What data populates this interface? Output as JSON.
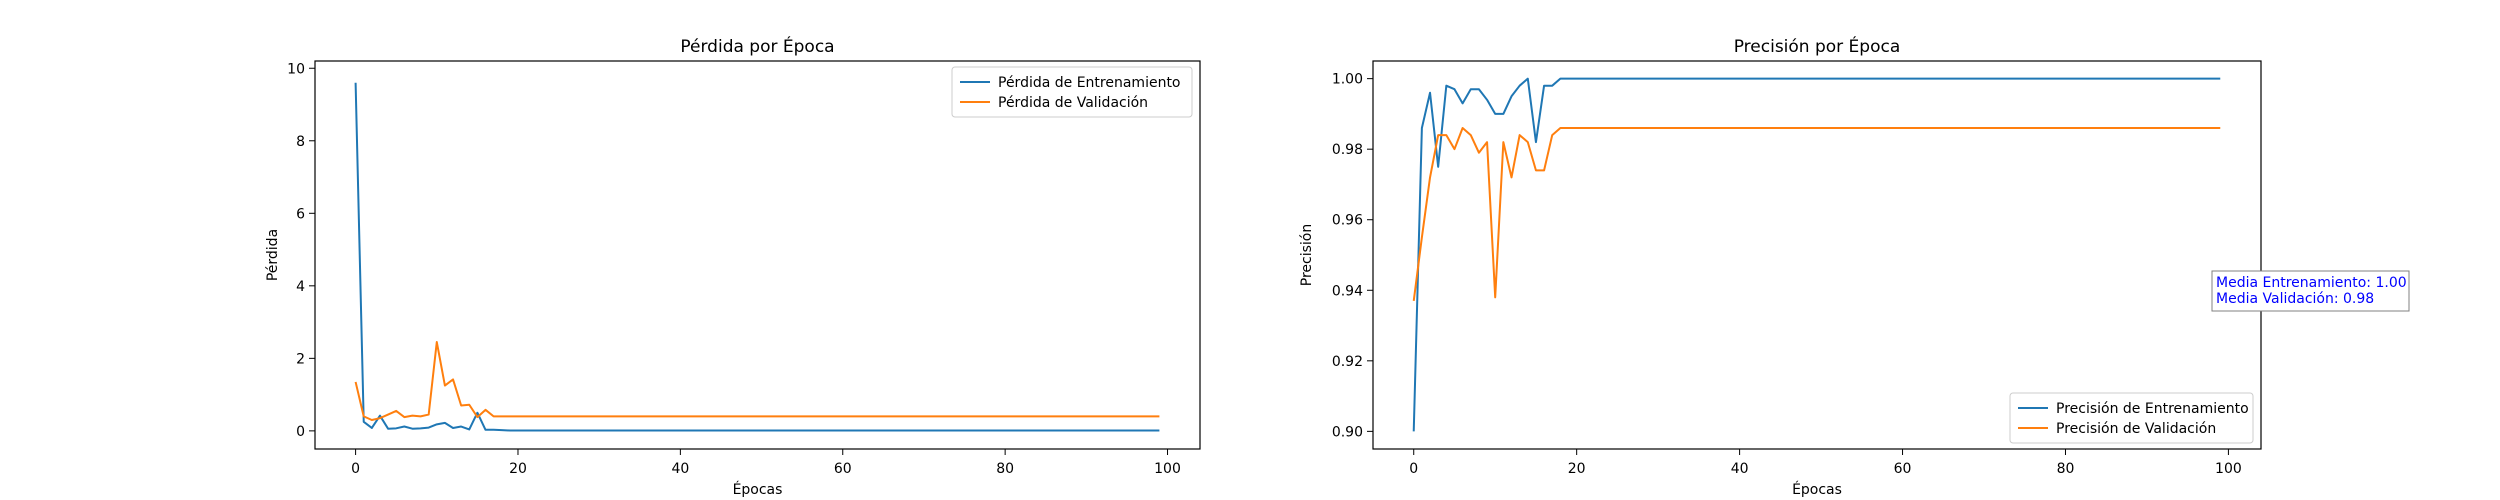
{
  "colors": {
    "train": "#1f77b4",
    "val": "#ff7f0e",
    "annotation": "#0000ff",
    "frame": "#000000"
  },
  "chart_data": [
    {
      "type": "line",
      "title": "Pérdida por Época",
      "xlabel": "Épocas",
      "ylabel": "Pérdida",
      "xlim": [
        -5,
        104
      ],
      "ylim": [
        -0.5,
        10.2
      ],
      "xticks": [
        0,
        20,
        40,
        60,
        80,
        100
      ],
      "yticks": [
        0,
        2,
        4,
        6,
        8,
        10
      ],
      "ytick_labels": [
        "0",
        "2",
        "4",
        "6",
        "8",
        "10"
      ],
      "grid": false,
      "legend_position": "top-right",
      "x": [
        0,
        1,
        2,
        3,
        4,
        5,
        6,
        7,
        8,
        9,
        10,
        11,
        12,
        13,
        14,
        15,
        16,
        17,
        18,
        19,
        20,
        21,
        22,
        23,
        24,
        25,
        26,
        27,
        28,
        29,
        30,
        31,
        32,
        33,
        34,
        35,
        36,
        37,
        38,
        39,
        40,
        41,
        42,
        43,
        44,
        45,
        46,
        47,
        48,
        49,
        50,
        51,
        52,
        53,
        54,
        55,
        56,
        57,
        58,
        59,
        60,
        61,
        62,
        63,
        64,
        65,
        66,
        67,
        68,
        69,
        70,
        71,
        72,
        73,
        74,
        75,
        76,
        77,
        78,
        79,
        80,
        81,
        82,
        83,
        84,
        85,
        86,
        87,
        88,
        89,
        90,
        91,
        92,
        93,
        94,
        95,
        96,
        97,
        98,
        99
      ],
      "series": [
        {
          "name": "Pérdida de Entrenamiento",
          "color": "#1f77b4",
          "values": [
            9.6,
            0.25,
            0.08,
            0.42,
            0.06,
            0.07,
            0.12,
            0.06,
            0.07,
            0.09,
            0.18,
            0.22,
            0.08,
            0.12,
            0.04,
            0.5,
            0.03,
            0.03,
            0.02,
            0.01,
            0.01,
            0.01,
            0.01,
            0.01,
            0.01,
            0.01,
            0.01,
            0.01,
            0.01,
            0.01,
            0.01,
            0.01,
            0.01,
            0.01,
            0.01,
            0.01,
            0.01,
            0.01,
            0.01,
            0.01,
            0.01,
            0.01,
            0.01,
            0.01,
            0.01,
            0.01,
            0.01,
            0.01,
            0.01,
            0.01,
            0.01,
            0.01,
            0.01,
            0.01,
            0.01,
            0.01,
            0.01,
            0.01,
            0.01,
            0.01,
            0.01,
            0.01,
            0.01,
            0.01,
            0.01,
            0.01,
            0.01,
            0.01,
            0.01,
            0.01,
            0.01,
            0.01,
            0.01,
            0.01,
            0.01,
            0.01,
            0.01,
            0.01,
            0.01,
            0.01,
            0.01,
            0.01,
            0.01,
            0.01,
            0.01,
            0.01,
            0.01,
            0.01,
            0.01,
            0.01,
            0.01,
            0.01,
            0.01,
            0.01,
            0.01,
            0.01,
            0.01,
            0.01,
            0.01,
            0.01
          ]
        },
        {
          "name": "Pérdida de Validación",
          "color": "#ff7f0e",
          "values": [
            1.35,
            0.4,
            0.3,
            0.35,
            0.45,
            0.55,
            0.38,
            0.42,
            0.4,
            0.45,
            2.45,
            1.25,
            1.42,
            0.7,
            0.72,
            0.38,
            0.58,
            0.4,
            0.4,
            0.4,
            0.4,
            0.4,
            0.4,
            0.4,
            0.4,
            0.4,
            0.4,
            0.4,
            0.4,
            0.4,
            0.4,
            0.4,
            0.4,
            0.4,
            0.4,
            0.4,
            0.4,
            0.4,
            0.4,
            0.4,
            0.4,
            0.4,
            0.4,
            0.4,
            0.4,
            0.4,
            0.4,
            0.4,
            0.4,
            0.4,
            0.4,
            0.4,
            0.4,
            0.4,
            0.4,
            0.4,
            0.4,
            0.4,
            0.4,
            0.4,
            0.4,
            0.4,
            0.4,
            0.4,
            0.4,
            0.4,
            0.4,
            0.4,
            0.4,
            0.4,
            0.4,
            0.4,
            0.4,
            0.4,
            0.4,
            0.4,
            0.4,
            0.4,
            0.4,
            0.4,
            0.4,
            0.4,
            0.4,
            0.4,
            0.4,
            0.4,
            0.4,
            0.4,
            0.4,
            0.4,
            0.4,
            0.4,
            0.4,
            0.4,
            0.4,
            0.4,
            0.4,
            0.4,
            0.4,
            0.4
          ]
        }
      ]
    },
    {
      "type": "line",
      "title": "Precisión por Época",
      "xlabel": "Épocas",
      "ylabel": "Precisión",
      "xlim": [
        -5,
        104
      ],
      "ylim": [
        0.895,
        1.005
      ],
      "xticks": [
        0,
        20,
        40,
        60,
        80,
        100
      ],
      "yticks": [
        0.9,
        0.92,
        0.94,
        0.96,
        0.98,
        1.0
      ],
      "ytick_labels": [
        "0.90",
        "0.92",
        "0.94",
        "0.96",
        "0.98",
        "1.00"
      ],
      "grid": false,
      "legend_position": "bottom-right",
      "x": [
        0,
        1,
        2,
        3,
        4,
        5,
        6,
        7,
        8,
        9,
        10,
        11,
        12,
        13,
        14,
        15,
        16,
        17,
        18,
        19,
        20,
        21,
        22,
        23,
        24,
        25,
        26,
        27,
        28,
        29,
        30,
        31,
        32,
        33,
        34,
        35,
        36,
        37,
        38,
        39,
        40,
        41,
        42,
        43,
        44,
        45,
        46,
        47,
        48,
        49,
        50,
        51,
        52,
        53,
        54,
        55,
        56,
        57,
        58,
        59,
        60,
        61,
        62,
        63,
        64,
        65,
        66,
        67,
        68,
        69,
        70,
        71,
        72,
        73,
        74,
        75,
        76,
        77,
        78,
        79,
        80,
        81,
        82,
        83,
        84,
        85,
        86,
        87,
        88,
        89,
        90,
        91,
        92,
        93,
        94,
        95,
        96,
        97,
        98,
        99
      ],
      "series": [
        {
          "name": "Precisión de Entrenamiento",
          "color": "#1f77b4",
          "values": [
            0.9,
            0.986,
            0.996,
            0.975,
            0.998,
            0.997,
            0.993,
            0.997,
            0.997,
            0.994,
            0.99,
            0.99,
            0.995,
            0.998,
            1.0,
            0.982,
            0.998,
            0.998,
            1.0,
            1.0,
            1.0,
            1.0,
            1.0,
            1.0,
            1.0,
            1.0,
            1.0,
            1.0,
            1.0,
            1.0,
            1.0,
            1.0,
            1.0,
            1.0,
            1.0,
            1.0,
            1.0,
            1.0,
            1.0,
            1.0,
            1.0,
            1.0,
            1.0,
            1.0,
            1.0,
            1.0,
            1.0,
            1.0,
            1.0,
            1.0,
            1.0,
            1.0,
            1.0,
            1.0,
            1.0,
            1.0,
            1.0,
            1.0,
            1.0,
            1.0,
            1.0,
            1.0,
            1.0,
            1.0,
            1.0,
            1.0,
            1.0,
            1.0,
            1.0,
            1.0,
            1.0,
            1.0,
            1.0,
            1.0,
            1.0,
            1.0,
            1.0,
            1.0,
            1.0,
            1.0,
            1.0,
            1.0,
            1.0,
            1.0,
            1.0,
            1.0,
            1.0,
            1.0,
            1.0,
            1.0,
            1.0,
            1.0,
            1.0,
            1.0,
            1.0,
            1.0,
            1.0,
            1.0,
            1.0,
            1.0
          ]
        },
        {
          "name": "Precisión de Validación",
          "color": "#ff7f0e",
          "values": [
            0.937,
            0.955,
            0.972,
            0.984,
            0.984,
            0.98,
            0.986,
            0.984,
            0.979,
            0.982,
            0.938,
            0.982,
            0.972,
            0.984,
            0.982,
            0.974,
            0.974,
            0.984,
            0.986,
            0.986,
            0.986,
            0.986,
            0.986,
            0.986,
            0.986,
            0.986,
            0.986,
            0.986,
            0.986,
            0.986,
            0.986,
            0.986,
            0.986,
            0.986,
            0.986,
            0.986,
            0.986,
            0.986,
            0.986,
            0.986,
            0.986,
            0.986,
            0.986,
            0.986,
            0.986,
            0.986,
            0.986,
            0.986,
            0.986,
            0.986,
            0.986,
            0.986,
            0.986,
            0.986,
            0.986,
            0.986,
            0.986,
            0.986,
            0.986,
            0.986,
            0.986,
            0.986,
            0.986,
            0.986,
            0.986,
            0.986,
            0.986,
            0.986,
            0.986,
            0.986,
            0.986,
            0.986,
            0.986,
            0.986,
            0.986,
            0.986,
            0.986,
            0.986,
            0.986,
            0.986,
            0.986,
            0.986,
            0.986,
            0.986,
            0.986,
            0.986,
            0.986,
            0.986,
            0.986,
            0.986,
            0.986,
            0.986,
            0.986,
            0.986,
            0.986,
            0.986,
            0.986,
            0.986,
            0.986,
            0.986
          ]
        }
      ],
      "annotations": [
        "Media Entrenamiento: 1.00",
        "Media Validación: 0.98"
      ]
    }
  ]
}
